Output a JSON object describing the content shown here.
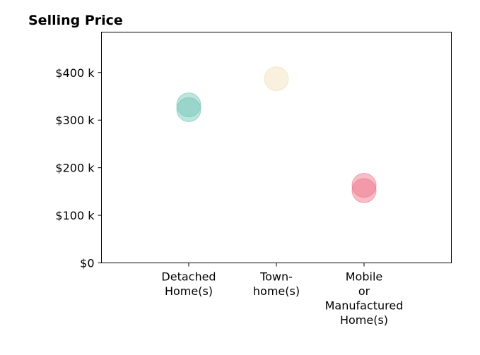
{
  "chart_data": {
    "type": "scatter",
    "title": "Selling Price",
    "xlabel": "",
    "ylabel": "",
    "categories": [
      [
        "Detached",
        "Home(s)"
      ],
      [
        "Town-",
        "home(s)"
      ],
      [
        "Mobile",
        "or",
        "Manufactured",
        "Home(s)"
      ]
    ],
    "ylim": [
      0,
      485000
    ],
    "yticks": [
      {
        "value": 0,
        "label": "$0"
      },
      {
        "value": 100000,
        "label": "$100 k"
      },
      {
        "value": 200000,
        "label": "$200 k"
      },
      {
        "value": 300000,
        "label": "$300 k"
      },
      {
        "value": 400000,
        "label": "$400 k"
      }
    ],
    "grid": false,
    "points": [
      {
        "category": 0,
        "y": 332000,
        "color": "#6cc3b4"
      },
      {
        "category": 0,
        "y": 322000,
        "color": "#6cc3b4"
      },
      {
        "category": 1,
        "y": 387000,
        "color": "#f2deb3"
      },
      {
        "category": 2,
        "y": 163000,
        "color": "#ee6f85"
      },
      {
        "category": 2,
        "y": 152000,
        "color": "#ee6f85"
      }
    ]
  }
}
